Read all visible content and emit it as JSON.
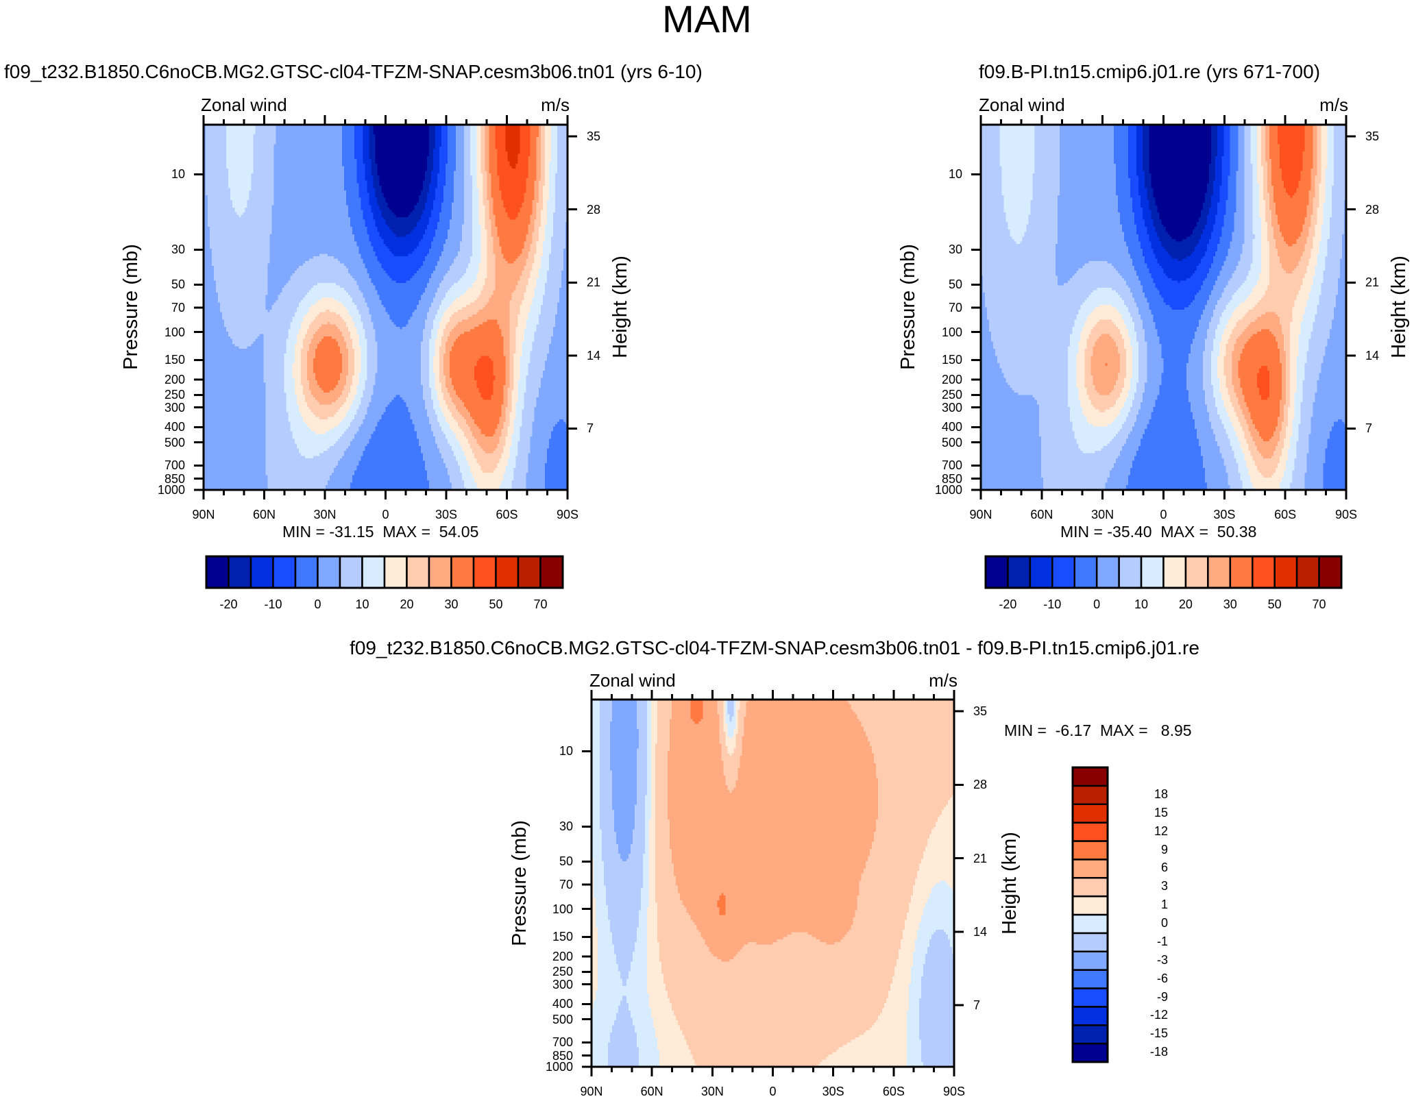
{
  "title": "MAM",
  "panels": [
    {
      "subtitle": "f09_t232.B1850.C6noCB.MG2.GTSC-cl04-TFZM-SNAP.cesm3b06.tn01 (yrs 6-10)",
      "left_label": "Zonal wind",
      "right_label": "m/s",
      "y_label": "Pressure (mb)",
      "y2_label": "Height (km)",
      "min_max": "MIN = -31.15  MAX =  54.05"
    },
    {
      "subtitle": "f09.B-PI.tn15.cmip6.j01.re (yrs 671-700)",
      "left_label": "Zonal wind",
      "right_label": "m/s",
      "y_label": "Pressure (mb)",
      "y2_label": "Height (km)",
      "min_max": "MIN = -35.40  MAX =  50.38"
    },
    {
      "subtitle": "f09_t232.B1850.C6noCB.MG2.GTSC-cl04-TFZM-SNAP.cesm3b06.tn01 - f09.B-PI.tn15.cmip6.j01.re",
      "left_label": "Zonal wind",
      "right_label": "m/s",
      "y_label": "Pressure (mb)",
      "y2_label": "Height (km)",
      "min_max": "MIN =  -6.17  MAX =   8.95"
    }
  ],
  "colors": [
    "#000090",
    "#0020b0",
    "#0030e0",
    "#1a4cff",
    "#4078ff",
    "#80a8ff",
    "#b4ccff",
    "#d8ecff",
    "#ffebd8",
    "#ffccb0",
    "#ffaa80",
    "#ff7a40",
    "#ff5020",
    "#e03000",
    "#b82000",
    "#880000"
  ],
  "colorbars": [
    {
      "levels": [
        -20,
        -15,
        -10,
        -5,
        0,
        5,
        10,
        15,
        20,
        25,
        30,
        40,
        50,
        60,
        70
      ],
      "labels": [
        "-20",
        "-10",
        "0",
        "10",
        "20",
        "30",
        "50",
        "70"
      ],
      "label_levels": [
        -20,
        -10,
        0,
        10,
        20,
        30,
        50,
        70
      ]
    },
    {
      "levels": [
        -20,
        -15,
        -10,
        -5,
        0,
        5,
        10,
        15,
        20,
        25,
        30,
        40,
        50,
        60,
        70
      ],
      "labels": [
        "-20",
        "-10",
        "0",
        "10",
        "20",
        "30",
        "50",
        "70"
      ],
      "label_levels": [
        -20,
        -10,
        0,
        10,
        20,
        30,
        50,
        70
      ]
    },
    {
      "levels": [
        -18,
        -15,
        -12,
        -9,
        -6,
        -3,
        -1,
        0,
        1,
        3,
        6,
        9,
        12,
        15,
        18
      ],
      "labels": [
        "-18",
        "-15",
        "-12",
        "-9",
        "-6",
        "-3",
        "-1",
        "0",
        "1",
        "3",
        "6",
        "9",
        "12",
        "15",
        "18"
      ],
      "label_levels": [
        -18,
        -15,
        -12,
        -9,
        -6,
        -3,
        -1,
        0,
        1,
        3,
        6,
        9,
        12,
        15,
        18
      ]
    }
  ],
  "chart_data": [
    {
      "type": "heatmap",
      "title": "f09_t232.B1850.C6noCB.MG2.GTSC-cl04-TFZM-SNAP.cesm3b06.tn01 (yrs 6-10)",
      "variable": "Zonal wind",
      "units": "m/s",
      "xlabel": "",
      "ylabel": "Pressure (mb)",
      "y2label": "Height (km)",
      "x_ticks": [
        {
          "value": 90,
          "label": "90N"
        },
        {
          "value": 60,
          "label": "60N"
        },
        {
          "value": 30,
          "label": "30N"
        },
        {
          "value": 0,
          "label": "0"
        },
        {
          "value": -30,
          "label": "30S"
        },
        {
          "value": -60,
          "label": "60S"
        },
        {
          "value": -90,
          "label": "90S"
        }
      ],
      "y_ticks": [
        10,
        30,
        50,
        70,
        100,
        150,
        200,
        250,
        300,
        400,
        500,
        700,
        850,
        1000
      ],
      "y2_ticks": [
        7,
        14,
        21,
        28,
        35
      ],
      "min": -31.15,
      "max": 54.05,
      "field_model": {
        "base": 3,
        "components": [
          {
            "lat": 28,
            "log10_p": 2.2,
            "amp": 32,
            "s_lat": 12,
            "s_logp": 0.3
          },
          {
            "lat": -35,
            "log10_p": 2.2,
            "amp": 28,
            "s_lat": 9,
            "s_logp": 0.3
          },
          {
            "lat": -52,
            "log10_p": 2.3,
            "amp": 28,
            "s_lat": 8,
            "s_logp": 0.35
          },
          {
            "lat": -63,
            "log10_p": 0.7,
            "amp": 50,
            "s_lat": 11,
            "s_logp": 0.75
          },
          {
            "lat": -8,
            "log10_p": 0.7,
            "amp": -40,
            "s_lat": 13,
            "s_logp": 0.55
          },
          {
            "lat": 72,
            "log10_p": 0.7,
            "amp": 9,
            "s_lat": 10,
            "s_logp": 0.8
          },
          {
            "lat": 0,
            "log10_p": 3,
            "amp": -7,
            "s_lat": 18,
            "s_logp": 0.5
          },
          {
            "lat": -86,
            "log10_p": 3,
            "amp": -6,
            "s_lat": 7,
            "s_logp": 0.4
          },
          {
            "lat": -50,
            "log10_p": 2.9,
            "amp": 10,
            "s_lat": 10,
            "s_logp": 0.4
          },
          {
            "lat": 42,
            "log10_p": 2.9,
            "amp": 5,
            "s_lat": 12,
            "s_logp": 0.4
          }
        ]
      }
    },
    {
      "type": "heatmap",
      "title": "f09.B-PI.tn15.cmip6.j01.re (yrs 671-700)",
      "variable": "Zonal wind",
      "units": "m/s",
      "xlabel": "",
      "ylabel": "Pressure (mb)",
      "y2label": "Height (km)",
      "x_ticks": [
        {
          "value": 90,
          "label": "90N"
        },
        {
          "value": 60,
          "label": "60N"
        },
        {
          "value": 30,
          "label": "30N"
        },
        {
          "value": 0,
          "label": "0"
        },
        {
          "value": -30,
          "label": "30S"
        },
        {
          "value": -60,
          "label": "60S"
        },
        {
          "value": -90,
          "label": "90S"
        }
      ],
      "y_ticks": [
        10,
        30,
        50,
        70,
        100,
        150,
        200,
        250,
        300,
        400,
        500,
        700,
        850,
        1000
      ],
      "y2_ticks": [
        7,
        14,
        21,
        28,
        35
      ],
      "min": -35.4,
      "max": 50.38,
      "field_model": {
        "base": 3,
        "components": [
          {
            "lat": 28,
            "log10_p": 2.2,
            "amp": 27,
            "s_lat": 11,
            "s_logp": 0.3
          },
          {
            "lat": -37,
            "log10_p": 2.2,
            "amp": 22,
            "s_lat": 10,
            "s_logp": 0.3
          },
          {
            "lat": -52,
            "log10_p": 2.35,
            "amp": 25,
            "s_lat": 8,
            "s_logp": 0.35
          },
          {
            "lat": -63,
            "log10_p": 0.7,
            "amp": 44,
            "s_lat": 11,
            "s_logp": 0.75
          },
          {
            "lat": -8,
            "log10_p": 0.75,
            "amp": -43,
            "s_lat": 14,
            "s_logp": 0.6
          },
          {
            "lat": 72,
            "log10_p": 0.8,
            "amp": 9,
            "s_lat": 12,
            "s_logp": 0.9
          },
          {
            "lat": 0,
            "log10_p": 3,
            "amp": -8,
            "s_lat": 16,
            "s_logp": 0.5
          },
          {
            "lat": -86,
            "log10_p": 3,
            "amp": -6,
            "s_lat": 7,
            "s_logp": 0.4
          },
          {
            "lat": -50,
            "log10_p": 2.9,
            "amp": 10,
            "s_lat": 10,
            "s_logp": 0.4
          },
          {
            "lat": 42,
            "log10_p": 2.9,
            "amp": 5,
            "s_lat": 12,
            "s_logp": 0.4
          }
        ]
      }
    },
    {
      "type": "heatmap",
      "title": "f09_t232.B1850.C6noCB.MG2.GTSC-cl04-TFZM-SNAP.cesm3b06.tn01 - f09.B-PI.tn15.cmip6.j01.re",
      "variable": "Zonal wind",
      "units": "m/s",
      "xlabel": "",
      "ylabel": "Pressure (mb)",
      "y2label": "Height (km)",
      "x_ticks": [
        {
          "value": 90,
          "label": "90N"
        },
        {
          "value": 60,
          "label": "60N"
        },
        {
          "value": 30,
          "label": "30N"
        },
        {
          "value": 0,
          "label": "0"
        },
        {
          "value": -30,
          "label": "30S"
        },
        {
          "value": -60,
          "label": "60S"
        },
        {
          "value": -90,
          "label": "90S"
        }
      ],
      "y_ticks": [
        10,
        30,
        50,
        70,
        100,
        150,
        200,
        250,
        300,
        400,
        500,
        700,
        850,
        1000
      ],
      "y2_ticks": [
        7,
        14,
        21,
        28,
        35
      ],
      "min": -6.17,
      "max": 8.95,
      "field_model": {
        "base": 0.6,
        "components": [
          {
            "lat": -10,
            "log10_p": 1.3,
            "amp": 4.2,
            "s_lat": 40,
            "s_logp": 0.75
          },
          {
            "lat": 40,
            "log10_p": 1.1,
            "amp": 2.5,
            "s_lat": 12,
            "s_logp": 0.8
          },
          {
            "lat": 25,
            "log10_p": 2.0,
            "amp": 3,
            "s_lat": 5,
            "s_logp": 0.17
          },
          {
            "lat": -30,
            "log10_p": 2.0,
            "amp": 2.6,
            "s_lat": 6,
            "s_logp": 0.13
          },
          {
            "lat": 38,
            "log10_p": 0.7,
            "amp": 2.5,
            "s_lat": 4,
            "s_logp": 0.12
          },
          {
            "lat": 73,
            "log10_p": 1.0,
            "amp": -5.5,
            "s_lat": 9,
            "s_logp": 0.9
          },
          {
            "lat": 21,
            "log10_p": 0.7,
            "amp": -5,
            "s_lat": 3.5,
            "s_logp": 0.35
          },
          {
            "lat": -82,
            "log10_p": 2.6,
            "amp": -2.8,
            "s_lat": 10,
            "s_logp": 0.6
          },
          {
            "lat": 75,
            "log10_p": 3,
            "amp": -1.5,
            "s_lat": 15,
            "s_logp": 0.3
          },
          {
            "lat": 10,
            "log10_p": 2.7,
            "amp": 1.2,
            "s_lat": 15,
            "s_logp": 0.4
          }
        ]
      }
    }
  ]
}
